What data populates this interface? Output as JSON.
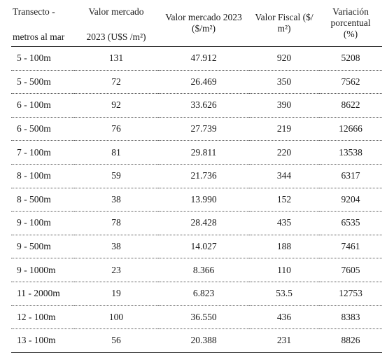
{
  "table": {
    "headers": {
      "col1_line1": "Transecto -",
      "col1_line2": "metros al mar",
      "col2_line1": "Valor mercado",
      "col2_line2": "2023 (U$S /m²)",
      "col3_line1": "Valor mercado 2023",
      "col3_line2": "($/m²)",
      "col4_line1": "Valor Fiscal ($/",
      "col4_line2": "m²)",
      "col5_line1": "Variación",
      "col5_line2": "porcentual",
      "col5_line3": "(%)"
    },
    "rows": [
      [
        "5 - 100m",
        "131",
        "47.912",
        "920",
        "5208"
      ],
      [
        "5 - 500m",
        "72",
        "26.469",
        "350",
        "7562"
      ],
      [
        "6 - 100m",
        "92",
        "33.626",
        "390",
        "8622"
      ],
      [
        "6 - 500m",
        "76",
        "27.739",
        "219",
        "12666"
      ],
      [
        "7 - 100m",
        "81",
        "29.811",
        "220",
        "13538"
      ],
      [
        "8 - 100m",
        "59",
        "21.736",
        "344",
        "6317"
      ],
      [
        "8 - 500m",
        "38",
        "13.990",
        "152",
        "9204"
      ],
      [
        "9 - 100m",
        "78",
        "28.428",
        "435",
        "6535"
      ],
      [
        "9 - 500m",
        "38",
        "14.027",
        "188",
        "7461"
      ],
      [
        "9 - 1000m",
        "23",
        "8.366",
        "110",
        "7605"
      ],
      [
        "11 - 2000m",
        "19",
        "6.823",
        "53.5",
        "12753"
      ],
      [
        "12 - 100m",
        "100",
        "36.550",
        "436",
        "8383"
      ],
      [
        "13 - 100m",
        "56",
        "20.388",
        "231",
        "8826"
      ]
    ]
  }
}
